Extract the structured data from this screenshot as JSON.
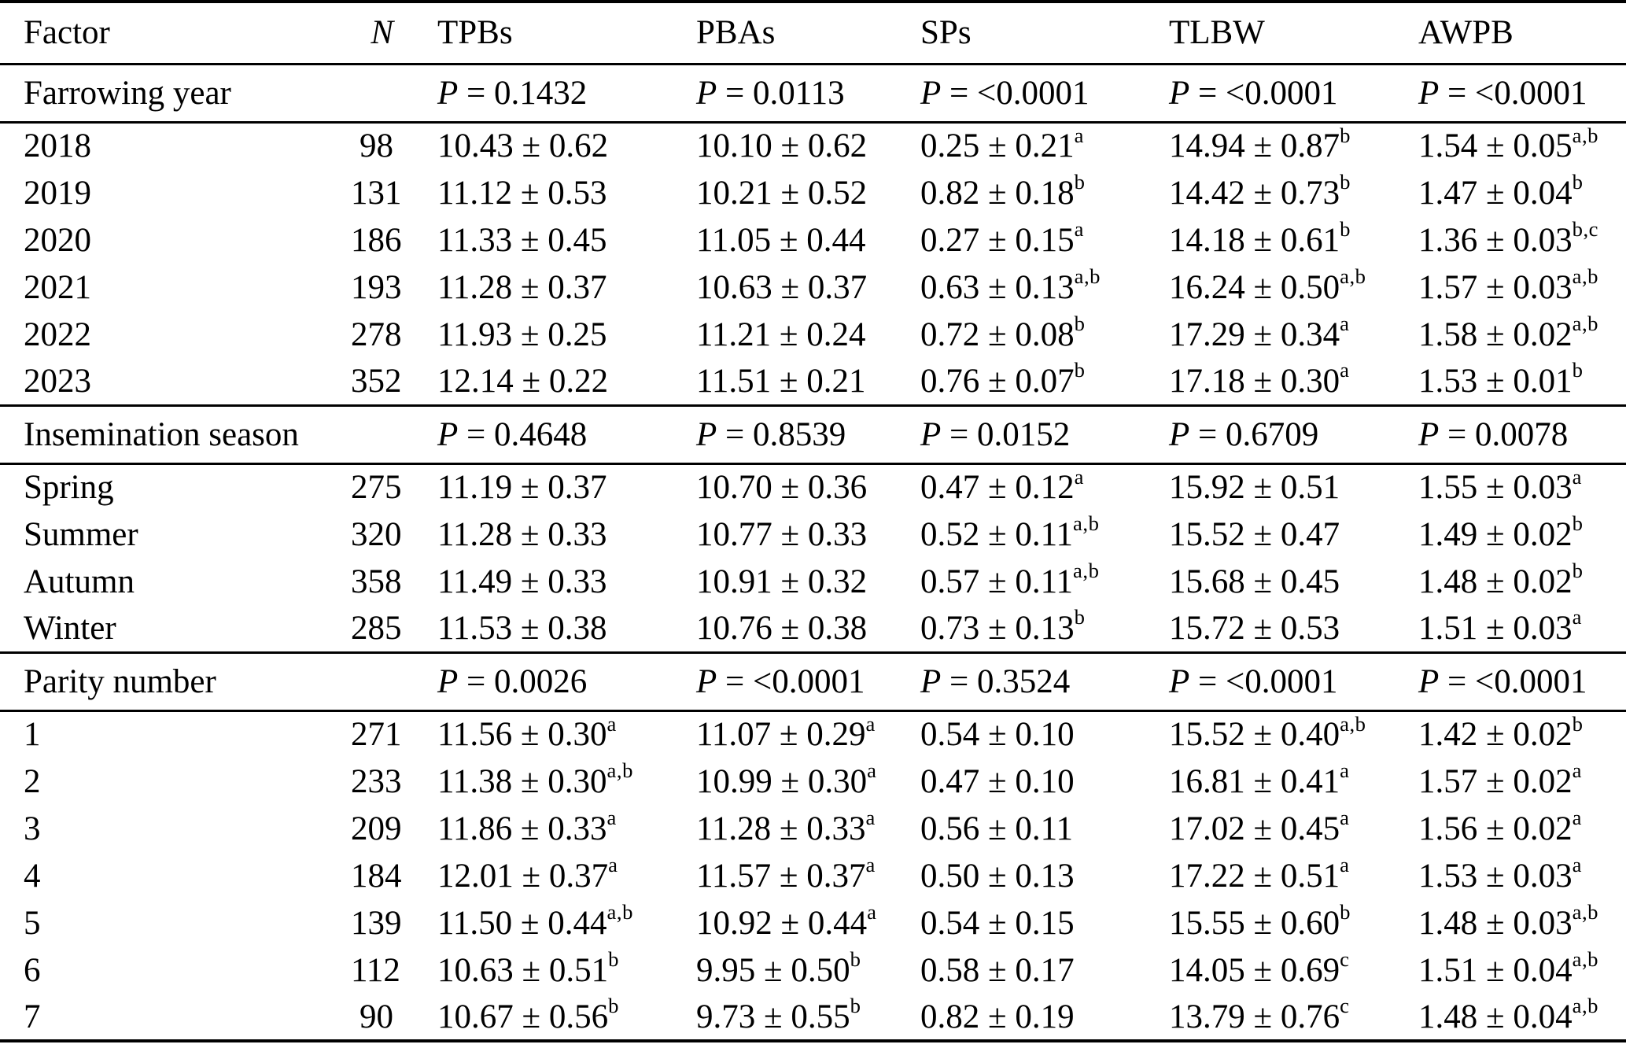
{
  "table": {
    "columns": [
      "Factor",
      "N",
      "TPBs",
      "PBAs",
      "SPs",
      "TLBW",
      "AWPB"
    ],
    "p_label": "P",
    "equals_sign": "=",
    "plus_minus_sign": "±",
    "sections": [
      {
        "factor": "Farrowing year",
        "p_values": [
          "0.1432",
          "0.0113",
          "<0.0001",
          "<0.0001",
          "<0.0001"
        ],
        "rows": [
          {
            "factor": "2018",
            "n": "98",
            "cells": [
              {
                "v": "10.43 ± 0.62"
              },
              {
                "v": "10.10 ± 0.62"
              },
              {
                "v": "0.25 ± 0.21",
                "sup": "a"
              },
              {
                "v": "14.94 ± 0.87",
                "sup": "b"
              },
              {
                "v": "1.54 ± 0.05",
                "sup": "a,b"
              }
            ]
          },
          {
            "factor": "2019",
            "n": "131",
            "cells": [
              {
                "v": "11.12 ± 0.53"
              },
              {
                "v": "10.21 ± 0.52"
              },
              {
                "v": "0.82 ± 0.18",
                "sup": "b"
              },
              {
                "v": "14.42 ± 0.73",
                "sup": "b"
              },
              {
                "v": "1.47 ± 0.04",
                "sup": "b"
              }
            ]
          },
          {
            "factor": "2020",
            "n": "186",
            "cells": [
              {
                "v": "11.33 ± 0.45"
              },
              {
                "v": "11.05 ± 0.44"
              },
              {
                "v": "0.27 ± 0.15",
                "sup": "a"
              },
              {
                "v": "14.18 ± 0.61",
                "sup": "b"
              },
              {
                "v": "1.36 ± 0.03",
                "sup": "b,c"
              }
            ]
          },
          {
            "factor": "2021",
            "n": "193",
            "cells": [
              {
                "v": "11.28 ± 0.37"
              },
              {
                "v": "10.63 ± 0.37"
              },
              {
                "v": "0.63 ± 0.13",
                "sup": "a,b"
              },
              {
                "v": "16.24 ± 0.50",
                "sup": "a,b"
              },
              {
                "v": "1.57 ± 0.03",
                "sup": "a,b"
              }
            ]
          },
          {
            "factor": "2022",
            "n": "278",
            "cells": [
              {
                "v": "11.93 ± 0.25"
              },
              {
                "v": "11.21 ± 0.24"
              },
              {
                "v": "0.72 ± 0.08",
                "sup": "b"
              },
              {
                "v": "17.29 ± 0.34",
                "sup": "a"
              },
              {
                "v": "1.58 ± 0.02",
                "sup": "a,b"
              }
            ]
          },
          {
            "factor": "2023",
            "n": "352",
            "cells": [
              {
                "v": "12.14 ± 0.22"
              },
              {
                "v": "11.51 ± 0.21"
              },
              {
                "v": "0.76 ± 0.07",
                "sup": "b"
              },
              {
                "v": "17.18 ± 0.30",
                "sup": "a"
              },
              {
                "v": "1.53 ± 0.01",
                "sup": "b"
              }
            ]
          }
        ]
      },
      {
        "factor": "Insemination season",
        "p_values": [
          "0.4648",
          "0.8539",
          "0.0152",
          "0.6709",
          "0.0078"
        ],
        "rows": [
          {
            "factor": "Spring",
            "n": "275",
            "cells": [
              {
                "v": "11.19 ± 0.37"
              },
              {
                "v": "10.70 ± 0.36"
              },
              {
                "v": "0.47 ± 0.12",
                "sup": "a"
              },
              {
                "v": "15.92 ± 0.51"
              },
              {
                "v": "1.55 ± 0.03",
                "sup": "a"
              }
            ]
          },
          {
            "factor": "Summer",
            "n": "320",
            "cells": [
              {
                "v": "11.28 ± 0.33"
              },
              {
                "v": "10.77 ± 0.33"
              },
              {
                "v": "0.52 ± 0.11",
                "sup": "a,b"
              },
              {
                "v": "15.52 ± 0.47"
              },
              {
                "v": "1.49 ± 0.02",
                "sup": "b"
              }
            ]
          },
          {
            "factor": "Autumn",
            "n": "358",
            "cells": [
              {
                "v": "11.49 ± 0.33"
              },
              {
                "v": "10.91 ± 0.32"
              },
              {
                "v": "0.57 ± 0.11",
                "sup": "a,b"
              },
              {
                "v": "15.68 ± 0.45"
              },
              {
                "v": "1.48 ± 0.02",
                "sup": "b"
              }
            ]
          },
          {
            "factor": "Winter",
            "n": "285",
            "cells": [
              {
                "v": "11.53 ± 0.38"
              },
              {
                "v": "10.76 ± 0.38"
              },
              {
                "v": "0.73 ± 0.13",
                "sup": "b"
              },
              {
                "v": "15.72 ± 0.53"
              },
              {
                "v": "1.51 ± 0.03",
                "sup": "a"
              }
            ]
          }
        ]
      },
      {
        "factor": "Parity number",
        "p_values": [
          "0.0026",
          "<0.0001",
          "0.3524",
          "<0.0001",
          "<0.0001"
        ],
        "rows": [
          {
            "factor": "1",
            "n": "271",
            "cells": [
              {
                "v": "11.56 ± 0.30",
                "sup": "a"
              },
              {
                "v": "11.07 ± 0.29",
                "sup": "a"
              },
              {
                "v": "0.54 ± 0.10"
              },
              {
                "v": "15.52 ± 0.40",
                "sup": "a,b"
              },
              {
                "v": "1.42 ± 0.02",
                "sup": "b"
              }
            ]
          },
          {
            "factor": "2",
            "n": "233",
            "cells": [
              {
                "v": "11.38 ± 0.30",
                "sup": "a,b"
              },
              {
                "v": "10.99 ± 0.30",
                "sup": "a"
              },
              {
                "v": "0.47 ± 0.10"
              },
              {
                "v": "16.81 ± 0.41",
                "sup": "a"
              },
              {
                "v": "1.57 ± 0.02",
                "sup": "a"
              }
            ]
          },
          {
            "factor": "3",
            "n": "209",
            "cells": [
              {
                "v": "11.86 ± 0.33",
                "sup": "a"
              },
              {
                "v": "11.28 ± 0.33",
                "sup": "a"
              },
              {
                "v": "0.56 ± 0.11"
              },
              {
                "v": "17.02 ± 0.45",
                "sup": "a"
              },
              {
                "v": "1.56 ± 0.02",
                "sup": "a"
              }
            ]
          },
          {
            "factor": "4",
            "n": "184",
            "cells": [
              {
                "v": "12.01 ± 0.37",
                "sup": "a"
              },
              {
                "v": "11.57 ± 0.37",
                "sup": "a"
              },
              {
                "v": "0.50 ± 0.13"
              },
              {
                "v": "17.22 ± 0.51",
                "sup": "a"
              },
              {
                "v": "1.53 ± 0.03",
                "sup": "a"
              }
            ]
          },
          {
            "factor": "5",
            "n": "139",
            "cells": [
              {
                "v": "11.50 ± 0.44",
                "sup": "a,b"
              },
              {
                "v": "10.92 ± 0.44",
                "sup": "a"
              },
              {
                "v": "0.54 ± 0.15"
              },
              {
                "v": "15.55 ± 0.60",
                "sup": "b"
              },
              {
                "v": "1.48 ± 0.03",
                "sup": "a,b"
              }
            ]
          },
          {
            "factor": "6",
            "n": "112",
            "cells": [
              {
                "v": "10.63 ± 0.51",
                "sup": "b"
              },
              {
                "v": "9.95 ± 0.50",
                "sup": "b"
              },
              {
                "v": "0.58 ± 0.17"
              },
              {
                "v": "14.05 ± 0.69",
                "sup": "c"
              },
              {
                "v": "1.51 ± 0.04",
                "sup": "a,b"
              }
            ]
          },
          {
            "factor": "7",
            "n": "90",
            "cells": [
              {
                "v": "10.67 ± 0.56",
                "sup": "b"
              },
              {
                "v": "9.73 ± 0.55",
                "sup": "b"
              },
              {
                "v": "0.82 ± 0.19"
              },
              {
                "v": "13.79 ± 0.76",
                "sup": "c"
              },
              {
                "v": "1.48 ± 0.04",
                "sup": "a,b"
              }
            ]
          }
        ]
      }
    ]
  }
}
